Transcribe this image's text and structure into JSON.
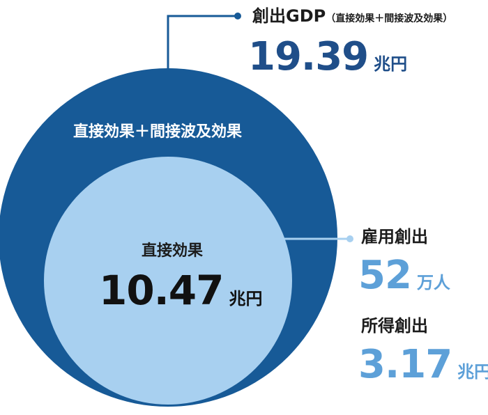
{
  "gdp": {
    "title": "創出GDP",
    "note": "（直接効果＋間接波及効果）",
    "value": "19.39",
    "unit": "兆円"
  },
  "outer_circle": {
    "label": "直接効果＋間接波及効果",
    "color": "#175a97"
  },
  "inner_circle": {
    "label": "直接効果",
    "value": "10.47",
    "unit": "兆円",
    "color": "#a8d0f0"
  },
  "employment": {
    "title": "雇用創出",
    "value": "52",
    "unit": "万人"
  },
  "income": {
    "title": "所得創出",
    "value": "3.17",
    "unit": "兆円"
  },
  "colors": {
    "dark_blue": "#175a97",
    "light_blue": "#a8d0f0",
    "accent_blue": "#5da0d8",
    "text_dark": "#1c1c1c"
  }
}
